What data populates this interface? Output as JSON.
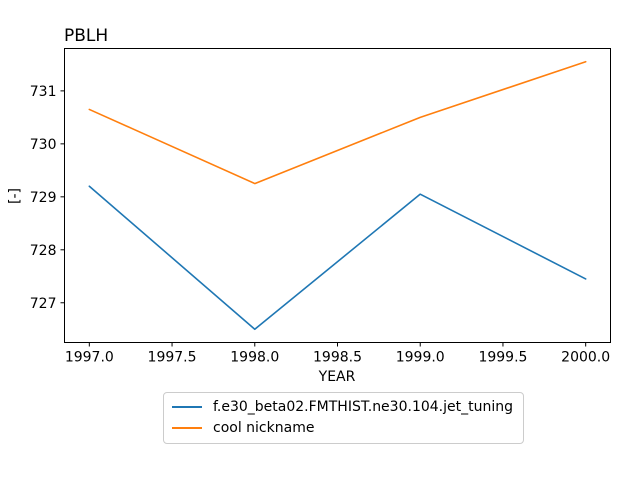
{
  "chart_data": {
    "type": "line",
    "title": "PBLH",
    "xlabel": "YEAR",
    "ylabel": "[-]",
    "x": [
      1997,
      1998,
      1999,
      2000
    ],
    "series": [
      {
        "name": "f.e30_beta02.FMTHIST.ne30.104.jet_tuning",
        "color": "#1f77b4",
        "values": [
          729.2,
          726.5,
          729.05,
          727.45
        ]
      },
      {
        "name": "cool nickname",
        "color": "#ff7f0e",
        "values": [
          730.65,
          729.25,
          730.5,
          731.55
        ]
      }
    ],
    "xlim": [
      1996.85,
      2000.15
    ],
    "ylim": [
      726.25,
      731.8
    ],
    "x_tick_labels": [
      "1997.0",
      "1997.5",
      "1998.0",
      "1998.5",
      "1999.0",
      "1999.5",
      "2000.0"
    ],
    "x_tick_values": [
      1997,
      1997.5,
      1998,
      1998.5,
      1999,
      1999.5,
      2000
    ],
    "y_tick_labels": [
      "727",
      "728",
      "729",
      "730",
      "731"
    ],
    "y_tick_values": [
      727,
      728,
      729,
      730,
      731
    ],
    "grid": false,
    "legend_position": "below-center",
    "axis_color": "#000000",
    "background_color": "#ffffff"
  }
}
